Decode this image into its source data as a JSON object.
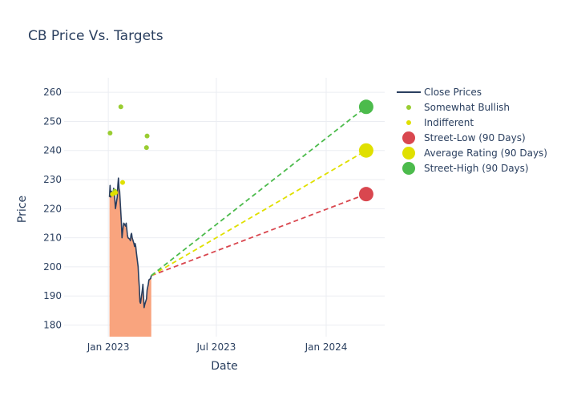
{
  "chart_data": {
    "type": "line",
    "title": "CB Price Vs. Targets",
    "xlabel": "Date",
    "ylabel": "Price",
    "x_range": [
      "2022-10-19",
      "2024-04-08"
    ],
    "ylim": [
      176,
      265
    ],
    "grid": true,
    "legend_position": "top-right",
    "x_ticks": [
      {
        "date": "2023-01-01",
        "label": "Jan 2023"
      },
      {
        "date": "2023-07-01",
        "label": "Jul 2023"
      },
      {
        "date": "2024-01-01",
        "label": "Jan 2024"
      }
    ],
    "y_ticks": [
      180,
      190,
      200,
      210,
      220,
      230,
      240,
      250,
      260
    ],
    "legend": [
      {
        "name": "Close Prices",
        "marker": "line",
        "color": "#2a3f5f"
      },
      {
        "name": "Somewhat Bullish",
        "marker": "small-dot",
        "color": "#9acd32"
      },
      {
        "name": "Indifferent",
        "marker": "small-dot",
        "color": "#e0e000"
      },
      {
        "name": "Street-Low (90 Days)",
        "marker": "big-dot",
        "color": "#d9474f"
      },
      {
        "name": "Average Rating (90 Days)",
        "marker": "big-dot",
        "color": "#e0e000"
      },
      {
        "name": "Street-High (90 Days)",
        "marker": "big-dot",
        "color": "#4cbb4c"
      }
    ],
    "close_prices": {
      "name": "Close Prices",
      "color": "#2a3f5f",
      "fill_color": "#f9a47e",
      "points": [
        [
          "2023-01-03",
          224
        ],
        [
          "2023-01-04",
          228
        ],
        [
          "2023-01-05",
          224
        ],
        [
          "2023-01-06",
          226
        ],
        [
          "2023-01-09",
          225
        ],
        [
          "2023-01-10",
          227
        ],
        [
          "2023-01-11",
          226
        ],
        [
          "2023-01-12",
          223
        ],
        [
          "2023-01-13",
          220
        ],
        [
          "2023-01-16",
          224
        ],
        [
          "2023-01-17",
          228
        ],
        [
          "2023-01-18",
          230.5
        ],
        [
          "2023-01-19",
          227
        ],
        [
          "2023-01-20",
          226
        ],
        [
          "2023-01-23",
          215
        ],
        [
          "2023-01-24",
          210
        ],
        [
          "2023-01-25",
          212
        ],
        [
          "2023-01-26",
          214
        ],
        [
          "2023-01-27",
          215
        ],
        [
          "2023-01-30",
          214
        ],
        [
          "2023-01-31",
          215
        ],
        [
          "2023-02-01",
          213
        ],
        [
          "2023-02-02",
          211
        ],
        [
          "2023-02-03",
          210
        ],
        [
          "2023-02-06",
          209.5
        ],
        [
          "2023-02-07",
          209
        ],
        [
          "2023-02-08",
          211
        ],
        [
          "2023-02-09",
          211.5
        ],
        [
          "2023-02-10",
          210
        ],
        [
          "2023-02-13",
          208
        ],
        [
          "2023-02-14",
          207
        ],
        [
          "2023-02-15",
          208
        ],
        [
          "2023-02-16",
          207
        ],
        [
          "2023-02-17",
          205
        ],
        [
          "2023-02-20",
          200
        ],
        [
          "2023-02-21",
          196
        ],
        [
          "2023-02-22",
          193
        ],
        [
          "2023-02-23",
          188
        ],
        [
          "2023-02-24",
          187.5
        ],
        [
          "2023-02-27",
          192
        ],
        [
          "2023-02-28",
          194
        ],
        [
          "2023-03-01",
          190
        ],
        [
          "2023-03-02",
          186
        ],
        [
          "2023-03-03",
          187
        ],
        [
          "2023-03-06",
          189
        ],
        [
          "2023-03-07",
          192
        ],
        [
          "2023-03-08",
          193
        ],
        [
          "2023-03-09",
          194
        ],
        [
          "2023-03-10",
          195.5
        ],
        [
          "2023-03-13",
          196
        ],
        [
          "2023-03-14",
          197
        ]
      ]
    },
    "ratings": [
      {
        "series": "Somewhat Bullish",
        "date": "2023-01-04",
        "value": 246,
        "color": "#9acd32"
      },
      {
        "series": "Somewhat Bullish",
        "date": "2023-01-12",
        "value": 226,
        "color": "#9acd32"
      },
      {
        "series": "Somewhat Bullish",
        "date": "2023-01-22",
        "value": 255,
        "color": "#9acd32"
      },
      {
        "series": "Somewhat Bullish",
        "date": "2023-03-06",
        "value": 241,
        "color": "#9acd32"
      },
      {
        "series": "Somewhat Bullish",
        "date": "2023-03-07",
        "value": 245,
        "color": "#9acd32"
      },
      {
        "series": "Indifferent",
        "date": "2023-01-08",
        "value": 225,
        "color": "#e0e000"
      },
      {
        "series": "Indifferent",
        "date": "2023-01-13",
        "value": 225.5,
        "color": "#e0e000"
      },
      {
        "series": "Indifferent",
        "date": "2023-01-25",
        "value": 229,
        "color": "#e0e000"
      }
    ],
    "targets": [
      {
        "series": "Street-Low (90 Days)",
        "start": [
          "2023-03-14",
          197
        ],
        "end": [
          "2024-03-08",
          225
        ],
        "color": "#d9474f"
      },
      {
        "series": "Average Rating (90 Days)",
        "start": [
          "2023-03-14",
          197
        ],
        "end": [
          "2024-03-08",
          240
        ],
        "color": "#e0e000"
      },
      {
        "series": "Street-High (90 Days)",
        "start": [
          "2023-03-14",
          197
        ],
        "end": [
          "2024-03-08",
          255
        ],
        "color": "#4cbb4c"
      }
    ]
  }
}
